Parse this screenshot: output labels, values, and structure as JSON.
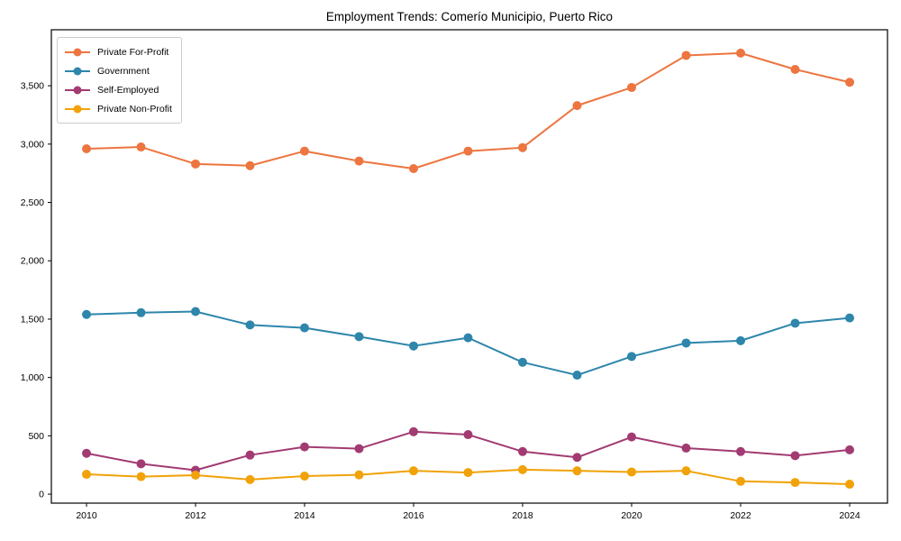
{
  "chart_data": {
    "type": "line",
    "title": "Employment Trends: Comerío Municipio, Puerto Rico",
    "xlabel": "",
    "ylabel": "",
    "x": [
      2010,
      2011,
      2012,
      2013,
      2014,
      2015,
      2016,
      2017,
      2018,
      2019,
      2020,
      2021,
      2022,
      2023,
      2024
    ],
    "x_ticks": [
      2010,
      2012,
      2014,
      2016,
      2018,
      2020,
      2022,
      2024
    ],
    "x_tick_labels": [
      "2010",
      "2012",
      "2014",
      "2016",
      "2018",
      "2020",
      "2022",
      "2024"
    ],
    "y_ticks": [
      0,
      500,
      1000,
      1500,
      2000,
      2500,
      3000,
      3500
    ],
    "y_tick_labels": [
      "0",
      "500",
      "1,000",
      "1,500",
      "2,000",
      "2,500",
      "3,000",
      "3,500"
    ],
    "xlim": [
      2009.355,
      2024.694
    ],
    "ylim": [
      -77,
      3980
    ],
    "grid": false,
    "legend_position": "upper left",
    "series": [
      {
        "name": "Private For-Profit",
        "color": "#ec7540",
        "values": [
          2960,
          2975,
          2830,
          2815,
          2940,
          2855,
          2790,
          2940,
          2970,
          3330,
          3485,
          3760,
          3780,
          3640,
          3530
        ]
      },
      {
        "name": "Government",
        "color": "#2e86ab",
        "values": [
          1540,
          1555,
          1565,
          1450,
          1425,
          1350,
          1270,
          1340,
          1130,
          1020,
          1180,
          1295,
          1315,
          1465,
          1510
        ]
      },
      {
        "name": "Self-Employed",
        "color": "#a23b72",
        "values": [
          350,
          260,
          205,
          335,
          405,
          390,
          535,
          510,
          365,
          315,
          490,
          395,
          365,
          330,
          380
        ]
      },
      {
        "name": "Private Non-Profit",
        "color": "#f1a208",
        "values": [
          170,
          150,
          163,
          125,
          155,
          165,
          200,
          185,
          210,
          200,
          190,
          200,
          110,
          100,
          85
        ]
      }
    ]
  }
}
